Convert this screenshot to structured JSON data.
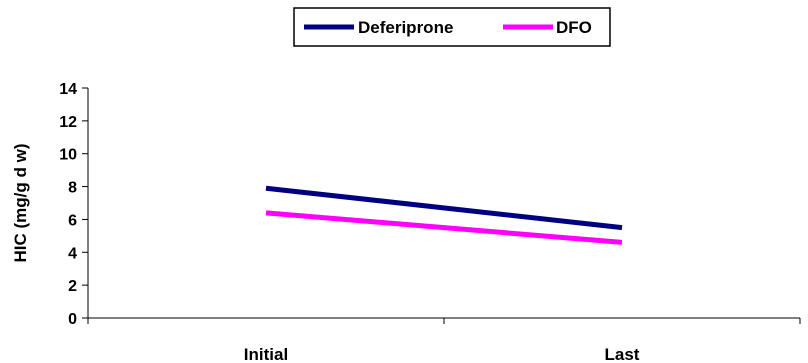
{
  "chart_data": {
    "type": "line",
    "categories": [
      "Initial",
      "Last"
    ],
    "series": [
      {
        "name": "Deferiprone",
        "values": [
          7.9,
          5.5
        ],
        "color": "#000080"
      },
      {
        "name": "DFO",
        "values": [
          6.4,
          4.6
        ],
        "color": "#ff00ff"
      }
    ],
    "ylabel": "HIC (mg/g d w)",
    "xlabel": "",
    "ylim": [
      0,
      14
    ],
    "yticks": [
      0,
      2,
      4,
      6,
      8,
      10,
      12,
      14
    ],
    "grid": false,
    "legend": "top-center"
  }
}
